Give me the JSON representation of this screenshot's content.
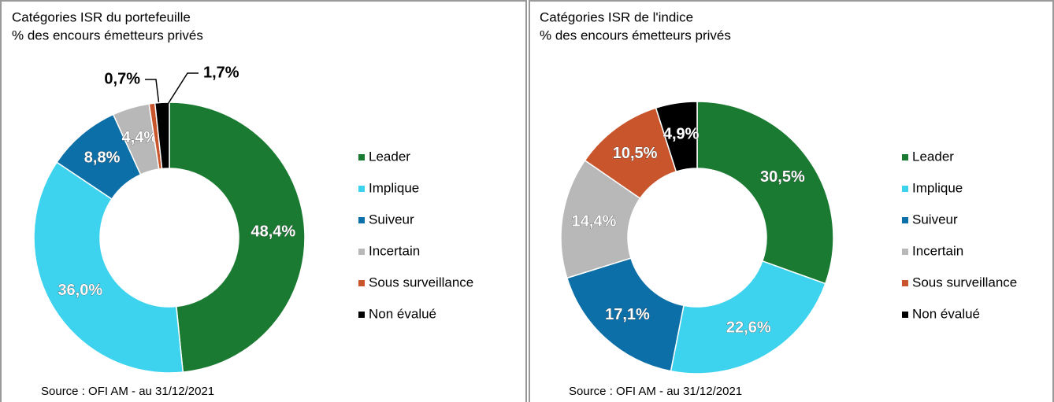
{
  "chart_data": [
    {
      "type": "donut",
      "title": "Catégories ISR du portefeuille",
      "subtitle": "% des encours émetteurs privés",
      "categories": [
        "Leader",
        "Implique",
        "Suiveur",
        "Incertain",
        "Sous surveillance",
        "Non évalué"
      ],
      "values": [
        48.4,
        36.0,
        8.8,
        4.4,
        0.7,
        1.7
      ],
      "value_labels": [
        "48,4%",
        "36,0%",
        "8,8%",
        "4,4%",
        "0,7%",
        "1,7%"
      ],
      "colors": [
        "#1a7a32",
        "#3dd3ee",
        "#0d6fa8",
        "#b8b8b8",
        "#c9552d",
        "#000000"
      ],
      "note": "Source : OFI AM - au 31/12/2021"
    },
    {
      "type": "donut",
      "title": "Catégories ISR de l'indice",
      "subtitle": "% des encours émetteurs privés",
      "categories": [
        "Leader",
        "Implique",
        "Suiveur",
        "Incertain",
        "Sous surveillance",
        "Non évalué"
      ],
      "values": [
        30.5,
        22.6,
        17.1,
        14.4,
        10.5,
        4.9
      ],
      "value_labels": [
        "30,5%",
        "22,6%",
        "17,1%",
        "14,4%",
        "10,5%",
        "4,9%"
      ],
      "colors": [
        "#1a7a32",
        "#3dd3ee",
        "#0d6fa8",
        "#b8b8b8",
        "#c9552d",
        "#000000"
      ],
      "note": "Source : OFI AM - au 31/12/2021"
    }
  ]
}
